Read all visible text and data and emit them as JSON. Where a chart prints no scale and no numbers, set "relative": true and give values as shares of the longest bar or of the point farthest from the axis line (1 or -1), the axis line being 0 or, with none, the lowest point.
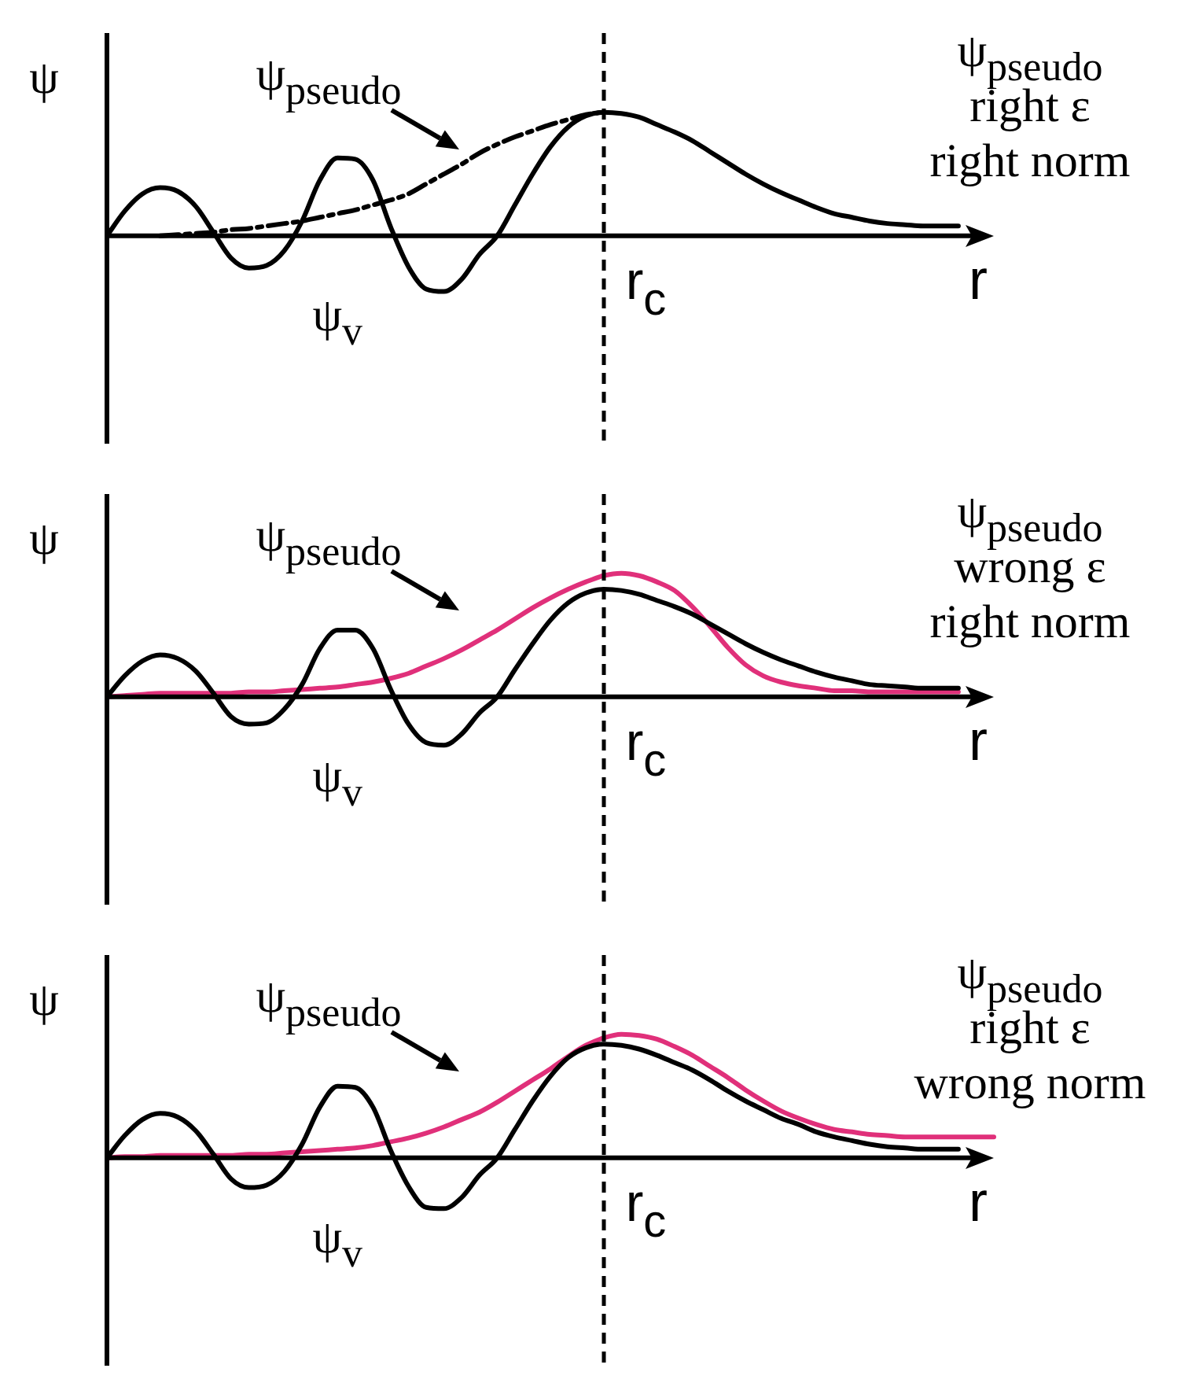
{
  "chart_data": [
    {
      "type": "line",
      "relative": true,
      "legend": false,
      "marker": "none",
      "xlabel": "r",
      "ylabel": "ψ",
      "categories": [
        null,
        null,
        null,
        null,
        null,
        null,
        null,
        null,
        null,
        null,
        null,
        null,
        null,
        null,
        null,
        null,
        null,
        null,
        null,
        null,
        null,
        null,
        null,
        null,
        null,
        null,
        null,
        null,
        null,
        null,
        null,
        null,
        null,
        null,
        null,
        null,
        null,
        null,
        null,
        null,
        null,
        null,
        null,
        null,
        null,
        null,
        null,
        null,
        null,
        null,
        null
      ],
      "series": [
        {
          "name": "ψ$_{v}$",
          "color": "#000000",
          "values": [
            0,
            0.2,
            0.34,
            0.39,
            0.36,
            0.24,
            0.03,
            -0.18,
            -0.26,
            -0.24,
            -0.12,
            0.12,
            0.45,
            0.63,
            0.62,
            0.45,
            0.07,
            -0.25,
            -0.43,
            -0.45,
            -0.35,
            -0.15,
            0,
            0.25,
            0.5,
            0.72,
            0.88,
            0.97,
            1,
            0.99,
            0.96,
            0.9,
            0.84,
            0.77,
            0.68,
            0.59,
            0.5,
            0.42,
            0.35,
            0.29,
            0.23,
            0.18,
            0.15,
            0.12,
            0.1,
            0.09,
            0.08,
            0.08,
            0.08,
            null,
            null
          ]
        },
        {
          "name": "ψ$_{pseudo}$",
          "color": "#000000",
          "line_style": "dashed",
          "values": [
            null,
            null,
            null,
            0,
            0.01,
            0.02,
            0.03,
            0.05,
            0.06,
            0.08,
            0.1,
            0.12,
            0.15,
            0.18,
            0.21,
            0.25,
            0.29,
            0.34,
            0.42,
            0.5,
            0.58,
            0.67,
            0.74,
            0.8,
            0.85,
            0.9,
            0.94,
            0.98,
            1,
            null,
            null,
            null,
            null,
            null,
            null,
            null,
            null,
            null,
            null,
            null,
            null,
            null,
            null,
            null,
            null,
            null,
            null,
            null,
            null,
            null,
            null
          ]
        }
      ],
      "annotations": [
        "ψ$_{pseudo}$",
        "right ε",
        "right norm",
        "r$_{c}$"
      ]
    },
    {
      "type": "line",
      "relative": true,
      "legend": false,
      "marker": "none",
      "xlabel": "r",
      "ylabel": "ψ",
      "categories": [
        null,
        null,
        null,
        null,
        null,
        null,
        null,
        null,
        null,
        null,
        null,
        null,
        null,
        null,
        null,
        null,
        null,
        null,
        null,
        null,
        null,
        null,
        null,
        null,
        null,
        null,
        null,
        null,
        null,
        null,
        null,
        null,
        null,
        null,
        null,
        null,
        null,
        null,
        null,
        null,
        null,
        null,
        null,
        null,
        null,
        null,
        null,
        null,
        null,
        null,
        null
      ],
      "series": [
        {
          "name": "ψ$_{v}$",
          "color": "#000000",
          "values": [
            0,
            0.17,
            0.29,
            0.34,
            0.31,
            0.21,
            0.03,
            -0.16,
            -0.22,
            -0.21,
            -0.1,
            0.1,
            0.39,
            0.54,
            0.54,
            0.39,
            0.06,
            -0.22,
            -0.37,
            -0.39,
            -0.3,
            -0.13,
            0,
            0.22,
            0.43,
            0.62,
            0.76,
            0.84,
            0.87,
            0.86,
            0.83,
            0.78,
            0.73,
            0.67,
            0.59,
            0.51,
            0.43,
            0.36,
            0.3,
            0.25,
            0.2,
            0.16,
            0.13,
            0.1,
            0.09,
            0.08,
            0.07,
            0.07,
            0.07,
            null,
            null
          ]
        },
        {
          "name": "ψ$_{pseudo}$",
          "color": "#e0307a",
          "values": [
            0,
            0.01,
            0.02,
            0.03,
            0.03,
            0.03,
            0.03,
            0.03,
            0.04,
            0.04,
            0.05,
            0.06,
            0.07,
            0.08,
            0.1,
            0.12,
            0.15,
            0.19,
            0.25,
            0.31,
            0.38,
            0.46,
            0.54,
            0.63,
            0.72,
            0.8,
            0.87,
            0.93,
            0.98,
            1,
            0.98,
            0.93,
            0.86,
            0.73,
            0.57,
            0.4,
            0.26,
            0.17,
            0.12,
            0.09,
            0.07,
            0.05,
            0.05,
            0.04,
            0.04,
            0.04,
            0.04,
            0.04,
            0.04,
            null,
            null
          ]
        }
      ],
      "annotations": [
        "ψ$_{pseudo}$",
        "wrong ε",
        "right norm",
        "r$_{c}$"
      ]
    },
    {
      "type": "line",
      "relative": true,
      "legend": false,
      "marker": "none",
      "xlabel": "r",
      "ylabel": "ψ",
      "categories": [
        null,
        null,
        null,
        null,
        null,
        null,
        null,
        null,
        null,
        null,
        null,
        null,
        null,
        null,
        null,
        null,
        null,
        null,
        null,
        null,
        null,
        null,
        null,
        null,
        null,
        null,
        null,
        null,
        null,
        null,
        null,
        null,
        null,
        null,
        null,
        null,
        null,
        null,
        null,
        null,
        null,
        null,
        null,
        null,
        null,
        null,
        null,
        null,
        null,
        null,
        null
      ],
      "series": [
        {
          "name": "ψ$_{v}$",
          "color": "#000000",
          "values": [
            0,
            0.18,
            0.31,
            0.36,
            0.33,
            0.22,
            0.03,
            -0.17,
            -0.24,
            -0.22,
            -0.11,
            0.11,
            0.41,
            0.58,
            0.57,
            0.41,
            0.06,
            -0.23,
            -0.4,
            -0.41,
            -0.32,
            -0.14,
            0,
            0.23,
            0.46,
            0.66,
            0.81,
            0.89,
            0.92,
            0.91,
            0.88,
            0.83,
            0.77,
            0.71,
            0.63,
            0.54,
            0.46,
            0.39,
            0.32,
            0.27,
            0.21,
            0.17,
            0.14,
            0.11,
            0.09,
            0.08,
            0.07,
            0.07,
            0.07,
            null,
            null
          ]
        },
        {
          "name": "ψ$_{pseudo}$",
          "color": "#e0307a",
          "values": [
            0,
            0.01,
            0.01,
            0.02,
            0.02,
            0.02,
            0.02,
            0.02,
            0.03,
            0.03,
            0.04,
            0.05,
            0.06,
            0.07,
            0.08,
            0.1,
            0.13,
            0.16,
            0.2,
            0.25,
            0.31,
            0.37,
            0.45,
            0.54,
            0.63,
            0.72,
            0.82,
            0.91,
            0.97,
            1,
            0.99,
            0.96,
            0.9,
            0.83,
            0.74,
            0.65,
            0.55,
            0.46,
            0.38,
            0.32,
            0.27,
            0.23,
            0.21,
            0.19,
            0.18,
            0.17,
            0.17,
            0.17,
            0.17,
            0.17,
            0.17
          ]
        }
      ],
      "annotations": [
        "ψ$_{pseudo}$",
        "right ε",
        "wrong norm",
        "r$_{c}$"
      ]
    }
  ]
}
